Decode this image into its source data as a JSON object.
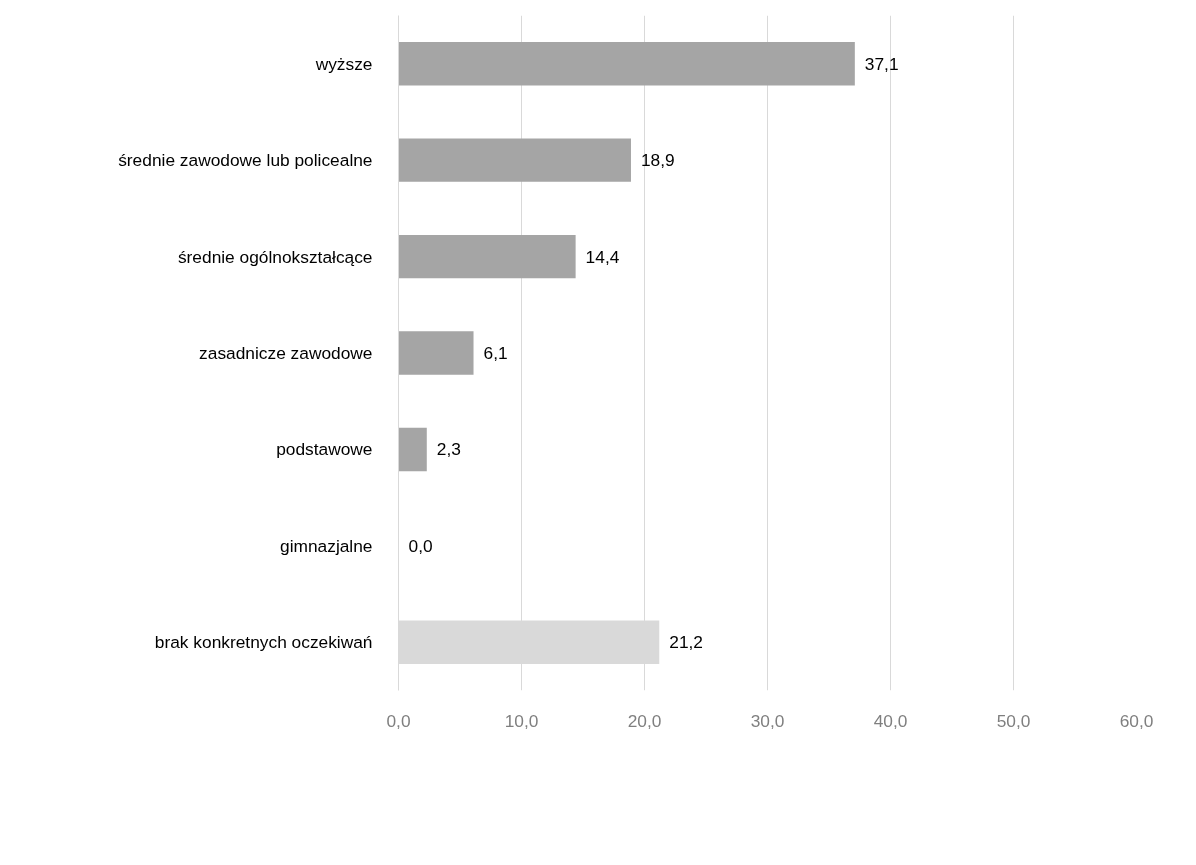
{
  "chart_data": {
    "type": "bar",
    "orientation": "horizontal",
    "categories": [
      "wyższe",
      "średnie zawodowe lub policealne",
      "średnie ogólnokształcące",
      "zasadnicze zawodowe",
      "podstawowe",
      "gimnazjalne",
      "brak konkretnych oczekiwań"
    ],
    "values": [
      37.1,
      18.9,
      14.4,
      6.1,
      2.3,
      0.0,
      21.2
    ],
    "colors": [
      "#a5a5a5",
      "#a5a5a5",
      "#a5a5a5",
      "#a5a5a5",
      "#a5a5a5",
      "#a5a5a5",
      "#d9d9d9"
    ],
    "value_labels": [
      "37,1",
      "18,9",
      "14,4",
      "6,1",
      "2,3",
      "0,0",
      "21,2"
    ],
    "xlim": [
      0,
      60
    ],
    "xticks": [
      {
        "value": 0,
        "label": "0,0"
      },
      {
        "value": 10,
        "label": "10,0"
      },
      {
        "value": 20,
        "label": "20,0"
      },
      {
        "value": 30,
        "label": "30,0"
      },
      {
        "value": 40,
        "label": "40,0"
      },
      {
        "value": 50,
        "label": "50,0"
      },
      {
        "value": 60,
        "label": "60,0"
      }
    ],
    "grid": "x"
  }
}
